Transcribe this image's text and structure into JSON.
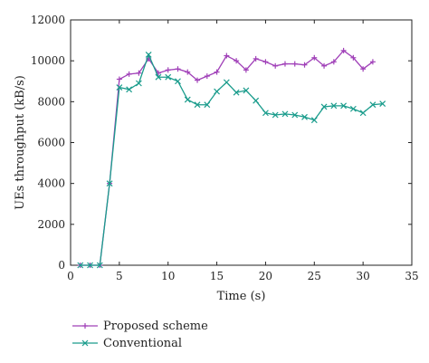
{
  "chart_data": {
    "type": "line",
    "xlabel": "Time (s)",
    "ylabel": "UEs throughput (kB/s)",
    "xlim": [
      0,
      35
    ],
    "ylim": [
      0,
      12000
    ],
    "xticks": [
      0,
      5,
      10,
      15,
      20,
      25,
      30,
      35
    ],
    "yticks": [
      0,
      2000,
      4000,
      6000,
      8000,
      10000,
      12000
    ],
    "grid": false,
    "legend_position": "bottom-left, below plot",
    "series": [
      {
        "name": "Proposed scheme",
        "color": "#a040b8",
        "marker": "plus",
        "x": [
          1,
          2,
          3,
          4,
          5,
          6,
          7,
          8,
          9,
          10,
          11,
          12,
          13,
          14,
          15,
          16,
          17,
          18,
          19,
          20,
          21,
          22,
          23,
          24,
          25,
          26,
          27,
          28,
          29,
          30,
          31
        ],
        "y": [
          0,
          0,
          0,
          4000,
          9100,
          9350,
          9400,
          10100,
          9400,
          9550,
          9600,
          9450,
          9050,
          9250,
          9450,
          10250,
          10000,
          9550,
          10100,
          9950,
          9750,
          9850,
          9850,
          9800,
          10150,
          9750,
          9950,
          10500,
          10150,
          9600,
          9950
        ]
      },
      {
        "name": "Conventional",
        "color": "#1a9c8c",
        "marker": "x",
        "x": [
          1,
          2,
          3,
          4,
          5,
          6,
          7,
          8,
          9,
          10,
          11,
          12,
          13,
          14,
          15,
          16,
          17,
          18,
          19,
          20,
          21,
          22,
          23,
          24,
          25,
          26,
          27,
          28,
          29,
          30,
          31,
          32
        ],
        "y": [
          0,
          0,
          0,
          4000,
          8700,
          8600,
          8900,
          10300,
          9200,
          9200,
          9000,
          8100,
          7850,
          7850,
          8500,
          8950,
          8450,
          8550,
          8050,
          7450,
          7350,
          7400,
          7350,
          7250,
          7100,
          7750,
          7800,
          7800,
          7650,
          7450,
          7850,
          7900
        ]
      }
    ]
  }
}
